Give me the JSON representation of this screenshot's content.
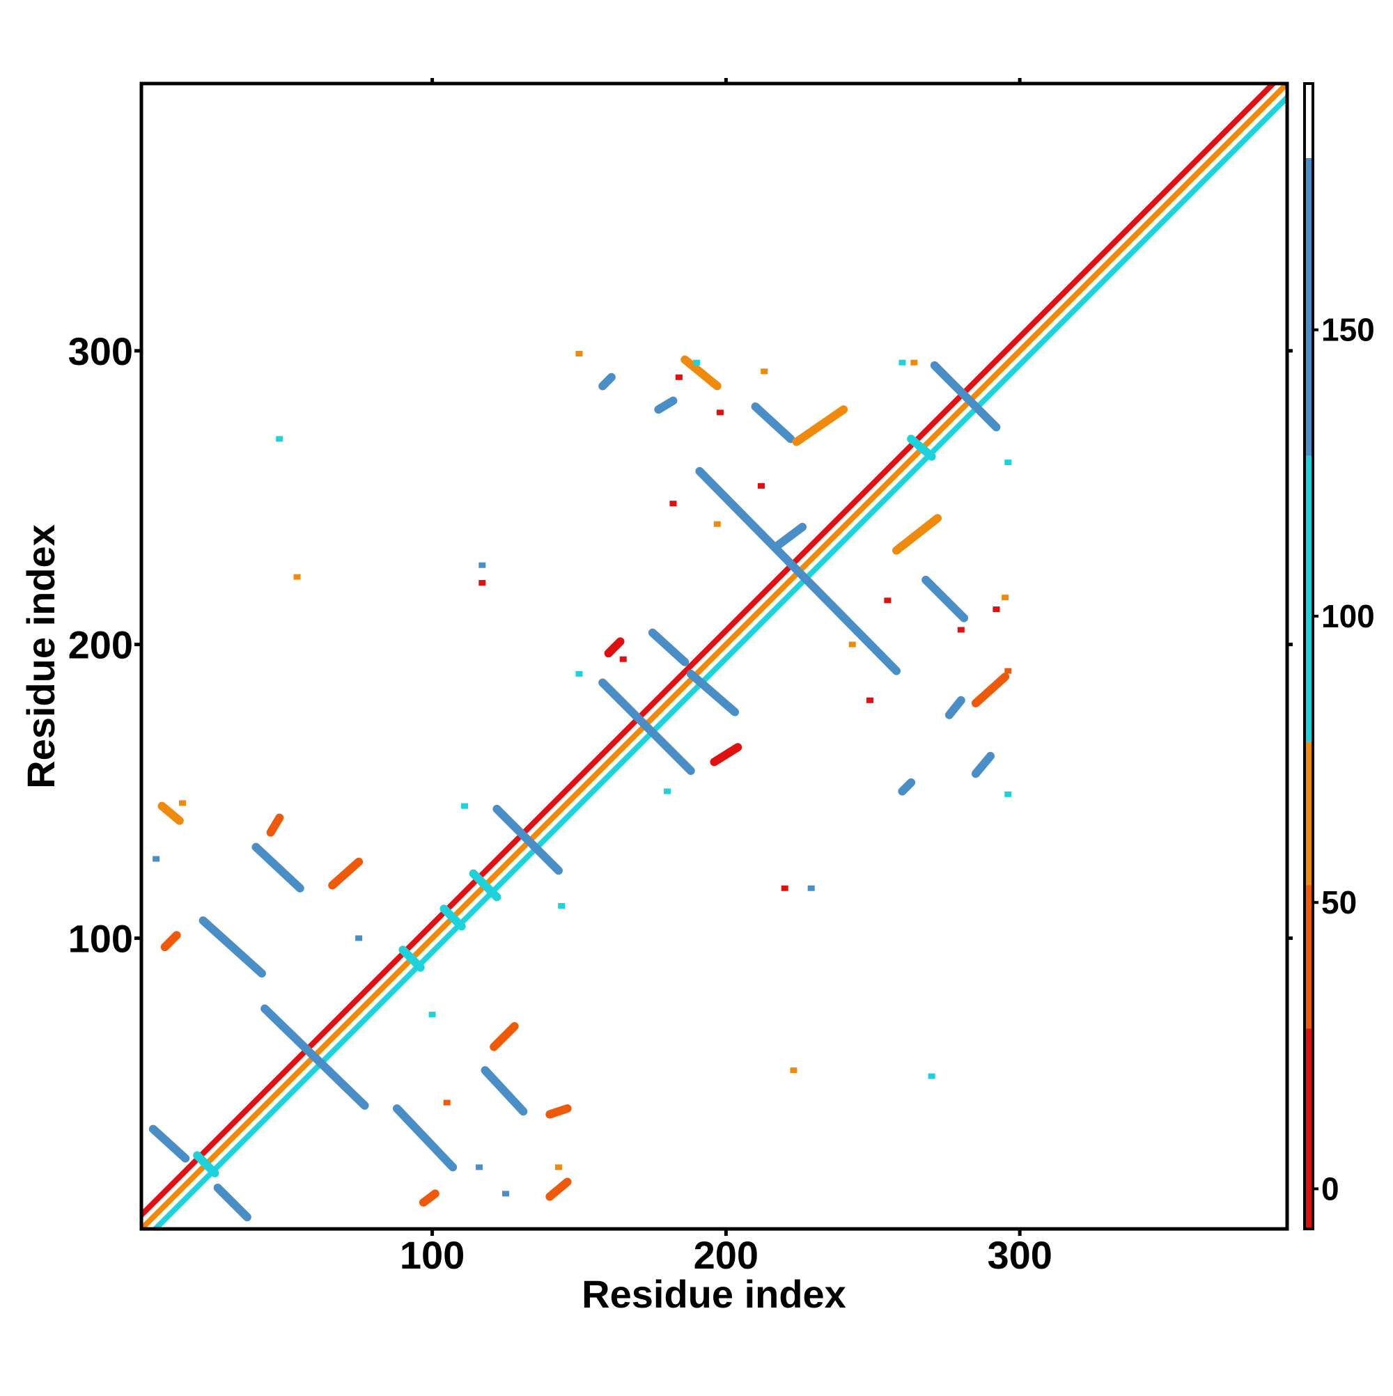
{
  "chart_data": {
    "type": "heatmap",
    "title": "",
    "xlabel": "Residue index",
    "ylabel": "Residue index",
    "xlim": [
      1,
      391
    ],
    "ylim": [
      1,
      391
    ],
    "x_ticks": [
      100,
      200,
      300
    ],
    "y_ticks": [
      100,
      200,
      300
    ],
    "grid": false,
    "colorbar": {
      "position": "right",
      "ticks": [
        0,
        50,
        100,
        150
      ],
      "range": [
        -7,
        193
      ],
      "bands": [
        {
          "from": -7,
          "to": 28,
          "color": "#e01010"
        },
        {
          "from": 28,
          "to": 53,
          "color": "#ef5a0a"
        },
        {
          "from": 53,
          "to": 78,
          "color": "#f08a0c"
        },
        {
          "from": 78,
          "to": 128,
          "color": "#1ed2dc"
        },
        {
          "from": 128,
          "to": 180,
          "color": "#4a8ec8"
        },
        {
          "from": 180,
          "to": 193,
          "color": "#ffffff"
        }
      ]
    },
    "diagonal": {
      "from": 1,
      "to": 391,
      "colors": [
        "#e01010",
        "#f08a0c",
        "#1ed2dc"
      ]
    },
    "segments": [
      {
        "x1": 5,
        "y1": 35,
        "x2": 16,
        "y2": 25,
        "color": "#4a8ec8"
      },
      {
        "x1": 27,
        "y1": 15,
        "x2": 37,
        "y2": 5,
        "color": "#4a8ec8"
      },
      {
        "x1": 22,
        "y1": 106,
        "x2": 42,
        "y2": 88,
        "color": "#4a8ec8"
      },
      {
        "x1": 40,
        "y1": 131,
        "x2": 55,
        "y2": 117,
        "color": "#4a8ec8"
      },
      {
        "x1": 43,
        "y1": 76,
        "x2": 77,
        "y2": 43,
        "color": "#4a8ec8"
      },
      {
        "x1": 88,
        "y1": 42,
        "x2": 107,
        "y2": 22,
        "color": "#4a8ec8"
      },
      {
        "x1": 118,
        "y1": 55,
        "x2": 131,
        "y2": 41,
        "color": "#4a8ec8"
      },
      {
        "x1": 122,
        "y1": 144,
        "x2": 143,
        "y2": 123,
        "color": "#4a8ec8"
      },
      {
        "x1": 158,
        "y1": 187,
        "x2": 188,
        "y2": 157,
        "color": "#4a8ec8"
      },
      {
        "x1": 175,
        "y1": 204,
        "x2": 186,
        "y2": 194,
        "color": "#4a8ec8"
      },
      {
        "x1": 188,
        "y1": 190,
        "x2": 203,
        "y2": 177,
        "color": "#4a8ec8"
      },
      {
        "x1": 191,
        "y1": 259,
        "x2": 258,
        "y2": 191,
        "color": "#4a8ec8"
      },
      {
        "x1": 210,
        "y1": 281,
        "x2": 222,
        "y2": 270,
        "color": "#4a8ec8"
      },
      {
        "x1": 268,
        "y1": 222,
        "x2": 281,
        "y2": 209,
        "color": "#4a8ec8"
      },
      {
        "x1": 271,
        "y1": 295,
        "x2": 292,
        "y2": 274,
        "color": "#4a8ec8"
      },
      {
        "x1": 263,
        "y1": 270,
        "x2": 270,
        "y2": 264,
        "color": "#1ed2dc"
      },
      {
        "x1": 114,
        "y1": 122,
        "x2": 122,
        "y2": 114,
        "color": "#1ed2dc"
      },
      {
        "x1": 104,
        "y1": 110,
        "x2": 110,
        "y2": 104,
        "color": "#1ed2dc"
      },
      {
        "x1": 90,
        "y1": 96,
        "x2": 96,
        "y2": 90,
        "color": "#1ed2dc"
      },
      {
        "x1": 20,
        "y1": 26,
        "x2": 26,
        "y2": 20,
        "color": "#1ed2dc"
      },
      {
        "x1": 8,
        "y1": 145,
        "x2": 14,
        "y2": 140,
        "color": "#f08a0c"
      },
      {
        "x1": 186,
        "y1": 297,
        "x2": 197,
        "y2": 288,
        "color": "#f08a0c"
      },
      {
        "x1": 224,
        "y1": 269,
        "x2": 240,
        "y2": 280,
        "color": "#f08a0c"
      },
      {
        "x1": 258,
        "y1": 232,
        "x2": 272,
        "y2": 243,
        "color": "#f08a0c"
      },
      {
        "x1": 285,
        "y1": 180,
        "x2": 295,
        "y2": 189,
        "color": "#ef5a0a"
      },
      {
        "x1": 196,
        "y1": 160,
        "x2": 204,
        "y2": 165,
        "color": "#e01010"
      },
      {
        "x1": 140,
        "y1": 12,
        "x2": 146,
        "y2": 17,
        "color": "#ef5a0a"
      },
      {
        "x1": 140,
        "y1": 40,
        "x2": 146,
        "y2": 42,
        "color": "#ef5a0a"
      },
      {
        "x1": 121,
        "y1": 63,
        "x2": 128,
        "y2": 70,
        "color": "#ef5a0a"
      },
      {
        "x1": 66,
        "y1": 118,
        "x2": 75,
        "y2": 126,
        "color": "#ef5a0a"
      },
      {
        "x1": 45,
        "y1": 136,
        "x2": 48,
        "y2": 141,
        "color": "#ef5a0a"
      },
      {
        "x1": 9,
        "y1": 97,
        "x2": 13,
        "y2": 101,
        "color": "#ef5a0a"
      },
      {
        "x1": 97,
        "y1": 10,
        "x2": 101,
        "y2": 13,
        "color": "#ef5a0a"
      },
      {
        "x1": 160,
        "y1": 197,
        "x2": 164,
        "y2": 201,
        "color": "#e01010"
      },
      {
        "x1": 218,
        "y1": 234,
        "x2": 226,
        "y2": 240,
        "color": "#4a8ec8"
      },
      {
        "x1": 260,
        "y1": 150,
        "x2": 263,
        "y2": 153,
        "color": "#4a8ec8"
      },
      {
        "x1": 285,
        "y1": 156,
        "x2": 290,
        "y2": 162,
        "color": "#4a8ec8"
      },
      {
        "x1": 276,
        "y1": 176,
        "x2": 280,
        "y2": 181,
        "color": "#4a8ec8"
      },
      {
        "x1": 177,
        "y1": 280,
        "x2": 182,
        "y2": 283,
        "color": "#4a8ec8"
      },
      {
        "x1": 158,
        "y1": 288,
        "x2": 161,
        "y2": 291,
        "color": "#4a8ec8"
      }
    ],
    "blobs": [
      {
        "x": 15,
        "y": 146,
        "color": "#f08a0c"
      },
      {
        "x": 48,
        "y": 270,
        "color": "#1ed2dc"
      },
      {
        "x": 54,
        "y": 223,
        "color": "#f08a0c"
      },
      {
        "x": 117,
        "y": 221,
        "color": "#e01010"
      },
      {
        "x": 117,
        "y": 227,
        "color": "#4a8ec8"
      },
      {
        "x": 150,
        "y": 299,
        "color": "#f08a0c"
      },
      {
        "x": 100,
        "y": 74,
        "color": "#1ed2dc"
      },
      {
        "x": 116,
        "y": 22,
        "color": "#4a8ec8"
      },
      {
        "x": 125,
        "y": 13,
        "color": "#4a8ec8"
      },
      {
        "x": 143,
        "y": 22,
        "color": "#f08a0c"
      },
      {
        "x": 105,
        "y": 44,
        "color": "#ef5a0a"
      },
      {
        "x": 6,
        "y": 127,
        "color": "#4a8ec8"
      },
      {
        "x": 75,
        "y": 100,
        "color": "#4a8ec8"
      },
      {
        "x": 111,
        "y": 145,
        "color": "#1ed2dc"
      },
      {
        "x": 144,
        "y": 111,
        "color": "#1ed2dc"
      },
      {
        "x": 220,
        "y": 117,
        "color": "#e01010"
      },
      {
        "x": 229,
        "y": 117,
        "color": "#4a8ec8"
      },
      {
        "x": 223,
        "y": 55,
        "color": "#f08a0c"
      },
      {
        "x": 270,
        "y": 53,
        "color": "#1ed2dc"
      },
      {
        "x": 150,
        "y": 190,
        "color": "#1ed2dc"
      },
      {
        "x": 180,
        "y": 150,
        "color": "#1ed2dc"
      },
      {
        "x": 296,
        "y": 149,
        "color": "#1ed2dc"
      },
      {
        "x": 296,
        "y": 191,
        "color": "#ef5a0a"
      },
      {
        "x": 296,
        "y": 262,
        "color": "#1ed2dc"
      },
      {
        "x": 260,
        "y": 296,
        "color": "#1ed2dc"
      },
      {
        "x": 264,
        "y": 296,
        "color": "#f08a0c"
      },
      {
        "x": 190,
        "y": 296,
        "color": "#1ed2dc"
      },
      {
        "x": 184,
        "y": 291,
        "color": "#e01010"
      },
      {
        "x": 198,
        "y": 279,
        "color": "#e01010"
      },
      {
        "x": 213,
        "y": 293,
        "color": "#f08a0c"
      },
      {
        "x": 212,
        "y": 254,
        "color": "#e01010"
      },
      {
        "x": 182,
        "y": 248,
        "color": "#e01010"
      },
      {
        "x": 295,
        "y": 216,
        "color": "#f08a0c"
      },
      {
        "x": 292,
        "y": 212,
        "color": "#e01010"
      },
      {
        "x": 255,
        "y": 215,
        "color": "#e01010"
      },
      {
        "x": 280,
        "y": 205,
        "color": "#e01010"
      },
      {
        "x": 249,
        "y": 181,
        "color": "#e01010"
      },
      {
        "x": 165,
        "y": 195,
        "color": "#e01010"
      },
      {
        "x": 243,
        "y": 200,
        "color": "#f08a0c"
      },
      {
        "x": 197,
        "y": 241,
        "color": "#f08a0c"
      }
    ]
  }
}
